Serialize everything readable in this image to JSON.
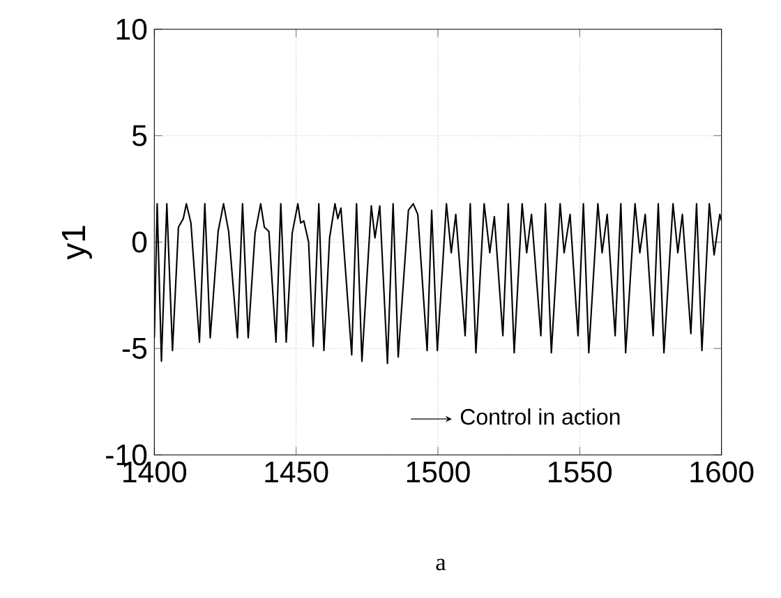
{
  "chart_data": {
    "type": "line",
    "ylabel": "y1",
    "annotations": [
      "Control in action",
      "a"
    ],
    "x": [
      1400,
      1401,
      1402.5,
      1404.4,
      1406.4,
      1408.5,
      1410.2,
      1411.3,
      1412.9,
      1415.9,
      1417.8,
      1419.7,
      1422.5,
      1424.4,
      1426.2,
      1429.3,
      1431.1,
      1433.1,
      1435.5,
      1437.5,
      1438.8,
      1440.4,
      1442.9,
      1444.6,
      1446.5,
      1448.6,
      1450.6,
      1451.6,
      1452.7,
      1454.4,
      1456.0,
      1458.0,
      1459.8,
      1461.8,
      1463.7,
      1464.7,
      1465.8,
      1469.6,
      1471.3,
      1473.2,
      1476.5,
      1477.8,
      1479.5,
      1482.2,
      1484.2,
      1486.0,
      1489.6,
      1491.3,
      1492.9,
      1496.2,
      1497.8,
      1499.8,
      1503.0,
      1504.7,
      1506.3,
      1509.6,
      1511.4,
      1513.4,
      1516.3,
      1518.3,
      1519.9,
      1522.9,
      1524.8,
      1526.9,
      1529.7,
      1531.3,
      1533.0,
      1536.3,
      1537.9,
      1540.0,
      1543.1,
      1544.5,
      1546.6,
      1549.4,
      1551.3,
      1553.2,
      1556.4,
      1557.9,
      1559.7,
      1562.5,
      1564.5,
      1566.2,
      1569.5,
      1571.2,
      1573.1,
      1575.9,
      1577.7,
      1579.7,
      1582.9,
      1584.6,
      1586.2,
      1589.2,
      1591.2,
      1593.1,
      1595.7,
      1597.4,
      1599.4,
      1600
    ],
    "series": [
      {
        "color": "#000000",
        "values": [
          -4.5,
          1.8,
          -5.6,
          1.8,
          -5.1,
          0.7,
          1.1,
          1.8,
          0.9,
          -4.7,
          1.8,
          -4.5,
          0.5,
          1.8,
          0.5,
          -4.5,
          1.8,
          -4.5,
          0.4,
          1.8,
          0.7,
          0.5,
          -4.7,
          1.8,
          -4.7,
          0.4,
          1.8,
          0.9,
          1.0,
          0.0,
          -4.9,
          1.8,
          -5.1,
          0.2,
          1.8,
          1.1,
          1.6,
          -5.3,
          1.8,
          -5.6,
          1.7,
          0.2,
          1.7,
          -5.7,
          1.8,
          -5.4,
          1.5,
          1.8,
          1.3,
          -5.1,
          1.5,
          -5.1,
          1.8,
          -0.5,
          1.3,
          -4.4,
          1.8,
          -5.2,
          1.8,
          -0.5,
          1.2,
          -4.4,
          1.8,
          -5.2,
          1.8,
          -0.5,
          1.3,
          -4.4,
          1.8,
          -5.2,
          1.8,
          -0.5,
          1.3,
          -4.4,
          1.8,
          -5.2,
          1.8,
          -0.5,
          1.3,
          -4.4,
          1.8,
          -5.2,
          1.8,
          -0.5,
          1.3,
          -4.4,
          1.8,
          -5.2,
          1.8,
          -0.5,
          1.3,
          -4.3,
          1.8,
          -5.1,
          1.8,
          -0.6,
          1.3,
          1.0
        ]
      }
    ],
    "xlim": [
      1400,
      1600
    ],
    "ylim": [
      -10,
      10
    ],
    "xticks": [
      1400,
      1450,
      1500,
      1550,
      1600
    ],
    "yticks": [
      -10,
      -5,
      0,
      5,
      10
    ],
    "grid": true,
    "marker": "none",
    "line_style": "solid"
  }
}
